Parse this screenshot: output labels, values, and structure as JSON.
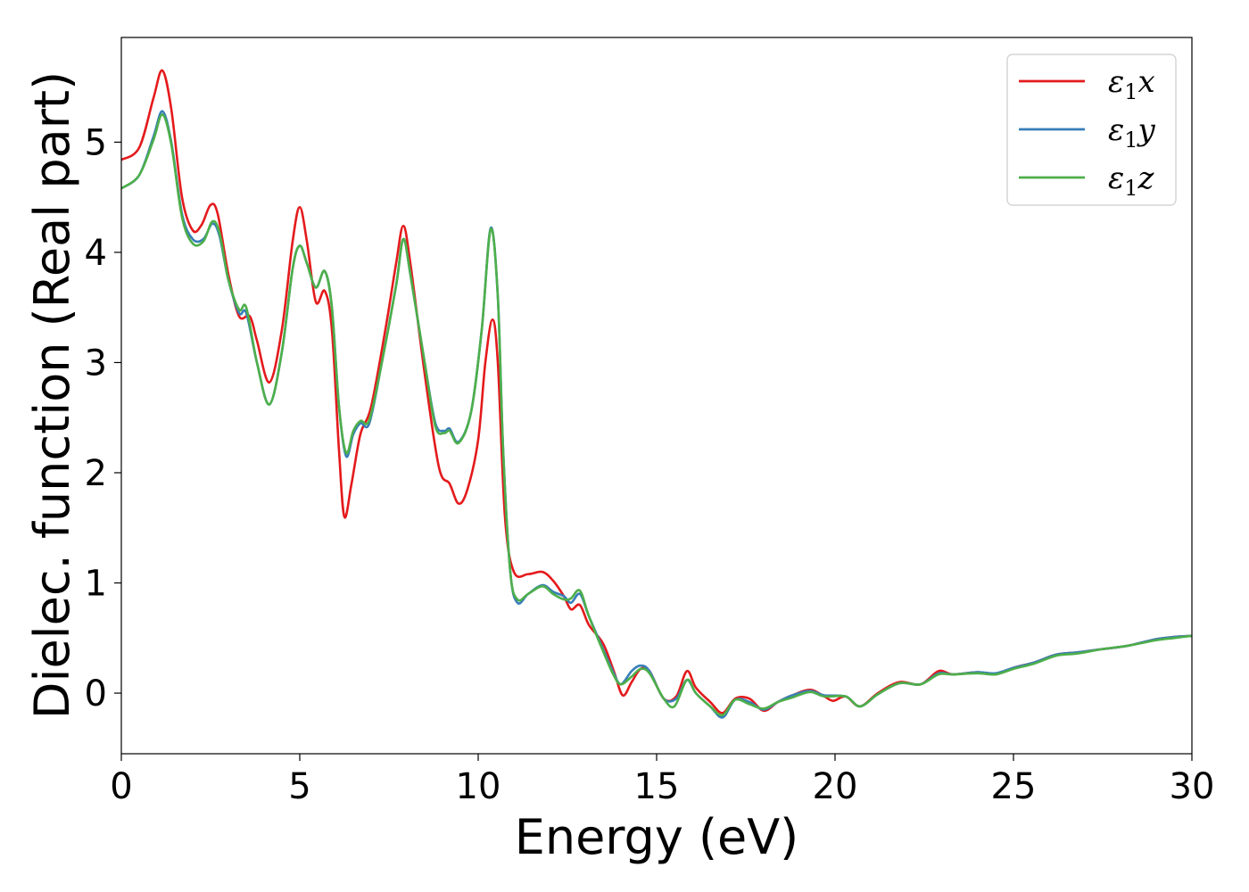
{
  "chart_data": {
    "type": "line",
    "title": "",
    "xlabel": "Energy (eV)",
    "ylabel": "Dielec. function (Real part)",
    "xlim": [
      0,
      30
    ],
    "ylim": [
      -0.55,
      5.95
    ],
    "xticks": [
      0,
      5,
      10,
      15,
      20,
      25,
      30
    ],
    "yticks": [
      0,
      1,
      2,
      3,
      4,
      5
    ],
    "grid": false,
    "legend": "top-right",
    "series": [
      {
        "name": "ε₁x",
        "legend_base": "ε",
        "legend_sub": "1",
        "legend_var": "x",
        "color": "#e41a1c",
        "points": [
          [
            0,
            4.84
          ],
          [
            0.5,
            4.95
          ],
          [
            0.9,
            5.4
          ],
          [
            1.15,
            5.65
          ],
          [
            1.4,
            5.3
          ],
          [
            1.7,
            4.5
          ],
          [
            2.0,
            4.2
          ],
          [
            2.25,
            4.25
          ],
          [
            2.5,
            4.43
          ],
          [
            2.7,
            4.35
          ],
          [
            3.0,
            3.8
          ],
          [
            3.3,
            3.42
          ],
          [
            3.6,
            3.42
          ],
          [
            3.8,
            3.2
          ],
          [
            4.15,
            2.82
          ],
          [
            4.5,
            3.3
          ],
          [
            4.8,
            4.1
          ],
          [
            5.0,
            4.41
          ],
          [
            5.2,
            4.1
          ],
          [
            5.45,
            3.55
          ],
          [
            5.7,
            3.65
          ],
          [
            5.9,
            3.3
          ],
          [
            6.1,
            2.2
          ],
          [
            6.25,
            1.6
          ],
          [
            6.45,
            1.9
          ],
          [
            6.7,
            2.35
          ],
          [
            7.0,
            2.6
          ],
          [
            7.4,
            3.3
          ],
          [
            7.7,
            3.9
          ],
          [
            7.9,
            4.24
          ],
          [
            8.1,
            3.9
          ],
          [
            8.5,
            2.9
          ],
          [
            8.9,
            2.05
          ],
          [
            9.2,
            1.9
          ],
          [
            9.45,
            1.72
          ],
          [
            9.7,
            1.85
          ],
          [
            10.0,
            2.3
          ],
          [
            10.2,
            3.0
          ],
          [
            10.4,
            3.39
          ],
          [
            10.55,
            3.0
          ],
          [
            10.75,
            1.6
          ],
          [
            11.0,
            1.1
          ],
          [
            11.4,
            1.08
          ],
          [
            11.8,
            1.1
          ],
          [
            12.1,
            1.02
          ],
          [
            12.4,
            0.88
          ],
          [
            12.6,
            0.76
          ],
          [
            12.85,
            0.8
          ],
          [
            13.1,
            0.62
          ],
          [
            13.5,
            0.45
          ],
          [
            13.8,
            0.2
          ],
          [
            14.05,
            -0.02
          ],
          [
            14.3,
            0.1
          ],
          [
            14.55,
            0.22
          ],
          [
            14.8,
            0.2
          ],
          [
            15.2,
            -0.05
          ],
          [
            15.55,
            -0.03
          ],
          [
            15.85,
            0.2
          ],
          [
            16.1,
            0.05
          ],
          [
            16.5,
            -0.08
          ],
          [
            16.85,
            -0.18
          ],
          [
            17.2,
            -0.05
          ],
          [
            17.6,
            -0.05
          ],
          [
            18.0,
            -0.16
          ],
          [
            18.4,
            -0.08
          ],
          [
            18.8,
            -0.02
          ],
          [
            19.3,
            0.03
          ],
          [
            19.7,
            -0.03
          ],
          [
            19.95,
            -0.07
          ],
          [
            20.3,
            -0.03
          ],
          [
            20.7,
            -0.12
          ],
          [
            21.2,
            0.0
          ],
          [
            21.8,
            0.1
          ],
          [
            22.4,
            0.08
          ],
          [
            22.9,
            0.2
          ],
          [
            23.3,
            0.17
          ],
          [
            24.0,
            0.19
          ],
          [
            24.5,
            0.17
          ],
          [
            25.0,
            0.23
          ],
          [
            25.6,
            0.28
          ],
          [
            26.2,
            0.35
          ],
          [
            26.8,
            0.37
          ],
          [
            27.5,
            0.4
          ],
          [
            28.2,
            0.43
          ],
          [
            29.0,
            0.49
          ],
          [
            29.5,
            0.51
          ],
          [
            30.0,
            0.52
          ]
        ]
      },
      {
        "name": "ε₁y",
        "legend_base": "ε",
        "legend_sub": "1",
        "legend_var": "y",
        "color": "#377eb8",
        "points": [
          [
            0,
            4.58
          ],
          [
            0.5,
            4.7
          ],
          [
            0.9,
            5.05
          ],
          [
            1.15,
            5.28
          ],
          [
            1.4,
            5.0
          ],
          [
            1.7,
            4.35
          ],
          [
            2.0,
            4.12
          ],
          [
            2.3,
            4.12
          ],
          [
            2.55,
            4.26
          ],
          [
            2.75,
            4.15
          ],
          [
            3.0,
            3.75
          ],
          [
            3.3,
            3.45
          ],
          [
            3.5,
            3.45
          ],
          [
            3.8,
            3.0
          ],
          [
            4.15,
            2.62
          ],
          [
            4.5,
            3.1
          ],
          [
            4.8,
            3.85
          ],
          [
            5.0,
            4.06
          ],
          [
            5.2,
            3.9
          ],
          [
            5.45,
            3.68
          ],
          [
            5.7,
            3.83
          ],
          [
            5.9,
            3.5
          ],
          [
            6.1,
            2.6
          ],
          [
            6.3,
            2.15
          ],
          [
            6.5,
            2.35
          ],
          [
            6.7,
            2.45
          ],
          [
            6.95,
            2.45
          ],
          [
            7.3,
            3.0
          ],
          [
            7.7,
            3.7
          ],
          [
            7.9,
            4.12
          ],
          [
            8.1,
            3.8
          ],
          [
            8.5,
            3.0
          ],
          [
            8.8,
            2.45
          ],
          [
            9.05,
            2.38
          ],
          [
            9.2,
            2.4
          ],
          [
            9.45,
            2.28
          ],
          [
            9.8,
            2.55
          ],
          [
            10.1,
            3.3
          ],
          [
            10.35,
            4.22
          ],
          [
            10.55,
            3.6
          ],
          [
            10.7,
            2.2
          ],
          [
            10.9,
            1.1
          ],
          [
            11.1,
            0.82
          ],
          [
            11.4,
            0.9
          ],
          [
            11.8,
            0.98
          ],
          [
            12.1,
            0.92
          ],
          [
            12.4,
            0.88
          ],
          [
            12.6,
            0.82
          ],
          [
            12.85,
            0.9
          ],
          [
            13.1,
            0.7
          ],
          [
            13.5,
            0.4
          ],
          [
            13.8,
            0.18
          ],
          [
            14.0,
            0.08
          ],
          [
            14.3,
            0.2
          ],
          [
            14.55,
            0.25
          ],
          [
            14.8,
            0.2
          ],
          [
            15.2,
            -0.05
          ],
          [
            15.55,
            -0.05
          ],
          [
            15.85,
            0.12
          ],
          [
            16.1,
            0.0
          ],
          [
            16.5,
            -0.12
          ],
          [
            16.85,
            -0.22
          ],
          [
            17.2,
            -0.06
          ],
          [
            17.6,
            -0.08
          ],
          [
            18.0,
            -0.15
          ],
          [
            18.4,
            -0.08
          ],
          [
            18.8,
            -0.02
          ],
          [
            19.3,
            0.02
          ],
          [
            19.7,
            -0.02
          ],
          [
            20.3,
            -0.03
          ],
          [
            20.7,
            -0.12
          ],
          [
            21.2,
            -0.01
          ],
          [
            21.8,
            0.09
          ],
          [
            22.4,
            0.08
          ],
          [
            22.9,
            0.18
          ],
          [
            23.3,
            0.17
          ],
          [
            24.0,
            0.19
          ],
          [
            24.5,
            0.18
          ],
          [
            25.0,
            0.23
          ],
          [
            25.6,
            0.28
          ],
          [
            26.2,
            0.35
          ],
          [
            26.8,
            0.37
          ],
          [
            27.5,
            0.4
          ],
          [
            28.2,
            0.43
          ],
          [
            29.0,
            0.49
          ],
          [
            29.5,
            0.51
          ],
          [
            30.0,
            0.52
          ]
        ]
      },
      {
        "name": "ε₁z",
        "legend_base": "ε",
        "legend_sub": "1",
        "legend_var": "z",
        "color": "#4daf4a",
        "points": [
          [
            0,
            4.58
          ],
          [
            0.5,
            4.7
          ],
          [
            0.9,
            5.02
          ],
          [
            1.15,
            5.25
          ],
          [
            1.4,
            4.98
          ],
          [
            1.7,
            4.32
          ],
          [
            2.0,
            4.08
          ],
          [
            2.3,
            4.1
          ],
          [
            2.55,
            4.28
          ],
          [
            2.75,
            4.18
          ],
          [
            3.0,
            3.75
          ],
          [
            3.3,
            3.48
          ],
          [
            3.5,
            3.5
          ],
          [
            3.8,
            3.0
          ],
          [
            4.15,
            2.62
          ],
          [
            4.5,
            3.1
          ],
          [
            4.8,
            3.85
          ],
          [
            5.0,
            4.06
          ],
          [
            5.2,
            3.9
          ],
          [
            5.45,
            3.68
          ],
          [
            5.7,
            3.83
          ],
          [
            5.9,
            3.5
          ],
          [
            6.1,
            2.6
          ],
          [
            6.3,
            2.18
          ],
          [
            6.5,
            2.38
          ],
          [
            6.7,
            2.47
          ],
          [
            6.95,
            2.48
          ],
          [
            7.3,
            3.0
          ],
          [
            7.7,
            3.7
          ],
          [
            7.9,
            4.12
          ],
          [
            8.1,
            3.8
          ],
          [
            8.5,
            3.0
          ],
          [
            8.8,
            2.42
          ],
          [
            9.05,
            2.36
          ],
          [
            9.2,
            2.38
          ],
          [
            9.45,
            2.27
          ],
          [
            9.8,
            2.55
          ],
          [
            10.1,
            3.3
          ],
          [
            10.35,
            4.21
          ],
          [
            10.55,
            3.6
          ],
          [
            10.7,
            2.2
          ],
          [
            10.9,
            1.1
          ],
          [
            11.1,
            0.85
          ],
          [
            11.4,
            0.9
          ],
          [
            11.8,
            0.97
          ],
          [
            12.1,
            0.9
          ],
          [
            12.4,
            0.85
          ],
          [
            12.6,
            0.86
          ],
          [
            12.85,
            0.93
          ],
          [
            13.1,
            0.7
          ],
          [
            13.5,
            0.38
          ],
          [
            13.8,
            0.16
          ],
          [
            14.0,
            0.08
          ],
          [
            14.3,
            0.15
          ],
          [
            14.55,
            0.22
          ],
          [
            14.8,
            0.18
          ],
          [
            15.2,
            -0.05
          ],
          [
            15.5,
            -0.12
          ],
          [
            15.85,
            0.12
          ],
          [
            16.1,
            0.0
          ],
          [
            16.5,
            -0.12
          ],
          [
            16.85,
            -0.2
          ],
          [
            17.2,
            -0.06
          ],
          [
            17.6,
            -0.1
          ],
          [
            18.0,
            -0.14
          ],
          [
            18.4,
            -0.08
          ],
          [
            18.8,
            -0.04
          ],
          [
            19.3,
            0.01
          ],
          [
            19.7,
            -0.03
          ],
          [
            20.3,
            -0.03
          ],
          [
            20.7,
            -0.12
          ],
          [
            21.2,
            -0.01
          ],
          [
            21.8,
            0.09
          ],
          [
            22.4,
            0.08
          ],
          [
            22.9,
            0.17
          ],
          [
            23.3,
            0.17
          ],
          [
            24.0,
            0.18
          ],
          [
            24.5,
            0.17
          ],
          [
            25.0,
            0.22
          ],
          [
            25.6,
            0.27
          ],
          [
            26.2,
            0.34
          ],
          [
            26.8,
            0.36
          ],
          [
            27.5,
            0.4
          ],
          [
            28.2,
            0.43
          ],
          [
            29.0,
            0.48
          ],
          [
            29.5,
            0.5
          ],
          [
            30.0,
            0.52
          ]
        ]
      }
    ]
  }
}
